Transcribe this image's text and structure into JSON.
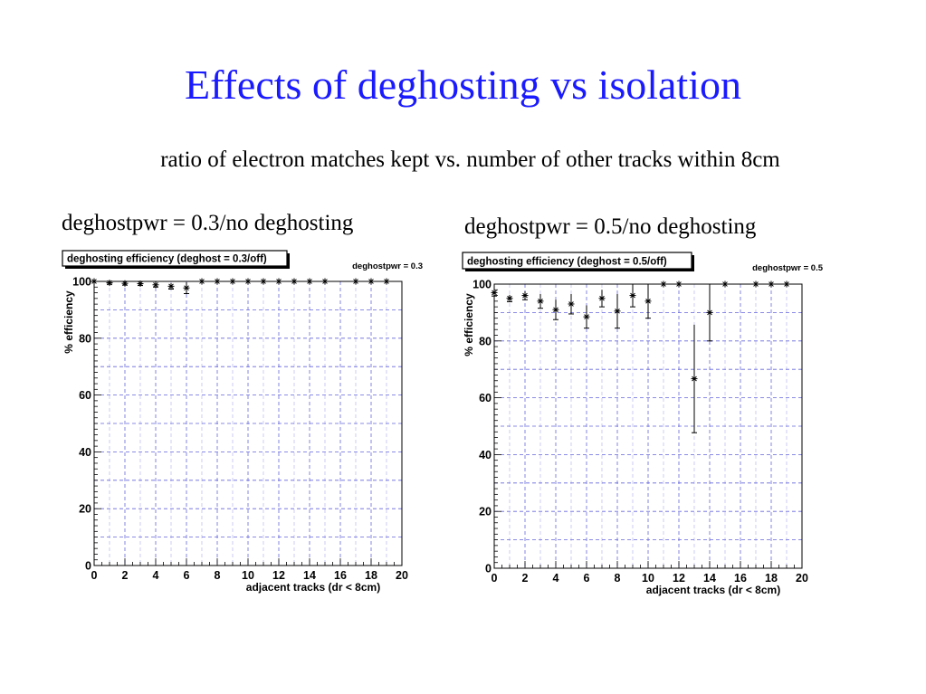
{
  "slide": {
    "title": "Effects of deghosting vs isolation",
    "subtitle": "ratio of electron matches kept vs. number of other tracks within 8cm",
    "caption_left": "deghostpwr = 0.3/no deghosting",
    "caption_right": "deghostpwr = 0.5/no deghosting"
  },
  "colors": {
    "title": "#1a1aff",
    "grid": "#6666dd",
    "marker": "#000000"
  },
  "chart_data": [
    {
      "type": "scatter",
      "title": "deghosting efficiency (deghost = 0.3/off)",
      "legend_text": "deghostpwr = 0.3",
      "xlabel": "adjacent tracks (dr < 8cm)",
      "ylabel": "% efficiency",
      "xlim": [
        0,
        20
      ],
      "ylim": [
        0,
        100
      ],
      "grid": true,
      "x_ticks": [
        "0",
        "2",
        "4",
        "6",
        "8",
        "10",
        "12",
        "14",
        "16",
        "18",
        "20"
      ],
      "y_ticks": [
        "0",
        "20",
        "40",
        "60",
        "80",
        "100"
      ],
      "points": [
        {
          "x": 0,
          "y": 100,
          "err": 0
        },
        {
          "x": 1,
          "y": 99.5,
          "err": 0.5
        },
        {
          "x": 2,
          "y": 99.3,
          "err": 0.6
        },
        {
          "x": 3,
          "y": 99.2,
          "err": 0.6
        },
        {
          "x": 4,
          "y": 98.8,
          "err": 0.8
        },
        {
          "x": 5,
          "y": 98.3,
          "err": 1.0
        },
        {
          "x": 6,
          "y": 97.7,
          "err": 2.0
        },
        {
          "x": 7,
          "y": 100,
          "err": 0
        },
        {
          "x": 8,
          "y": 100,
          "err": 0
        },
        {
          "x": 9,
          "y": 100,
          "err": 0
        },
        {
          "x": 10,
          "y": 100,
          "err": 0
        },
        {
          "x": 11,
          "y": 100,
          "err": 0
        },
        {
          "x": 12,
          "y": 100,
          "err": 0
        },
        {
          "x": 13,
          "y": 100,
          "err": 0
        },
        {
          "x": 14,
          "y": 100,
          "err": 0
        },
        {
          "x": 15,
          "y": 100,
          "err": 0
        },
        {
          "x": 17,
          "y": 100,
          "err": 0
        },
        {
          "x": 18,
          "y": 100,
          "err": 0
        },
        {
          "x": 19,
          "y": 100,
          "err": 0
        }
      ]
    },
    {
      "type": "scatter",
      "title": "deghosting efficiency (deghost = 0.5/off)",
      "legend_text": "deghostpwr = 0.5",
      "xlabel": "adjacent tracks (dr < 8cm)",
      "ylabel": "% efficiency",
      "xlim": [
        0,
        20
      ],
      "ylim": [
        0,
        100
      ],
      "grid": true,
      "x_ticks": [
        "0",
        "2",
        "4",
        "6",
        "8",
        "10",
        "12",
        "14",
        "16",
        "18",
        "20"
      ],
      "y_ticks": [
        "0",
        "20",
        "40",
        "60",
        "80",
        "100"
      ],
      "points": [
        {
          "x": 0,
          "y": 97,
          "err": 1.2
        },
        {
          "x": 1,
          "y": 95,
          "err": 1.2
        },
        {
          "x": 2,
          "y": 96,
          "err": 1.5
        },
        {
          "x": 3,
          "y": 94,
          "err": 2.5
        },
        {
          "x": 4,
          "y": 91,
          "err": 3.5
        },
        {
          "x": 5,
          "y": 93,
          "err": 3.5
        },
        {
          "x": 6,
          "y": 88.5,
          "err": 4.0
        },
        {
          "x": 7,
          "y": 95,
          "err": 3.0
        },
        {
          "x": 8,
          "y": 90.5,
          "err": 6.0
        },
        {
          "x": 9,
          "y": 96,
          "err": 4.0
        },
        {
          "x": 10,
          "y": 94,
          "err": 6.0
        },
        {
          "x": 11,
          "y": 100,
          "err": 0
        },
        {
          "x": 12,
          "y": 100,
          "err": 0
        },
        {
          "x": 13,
          "y": 66.7,
          "err": 19.0
        },
        {
          "x": 14,
          "y": 90,
          "err": 10.0
        },
        {
          "x": 15,
          "y": 100,
          "err": 0
        },
        {
          "x": 17,
          "y": 100,
          "err": 0
        },
        {
          "x": 18,
          "y": 100,
          "err": 0
        },
        {
          "x": 19,
          "y": 100,
          "err": 0
        }
      ]
    }
  ]
}
